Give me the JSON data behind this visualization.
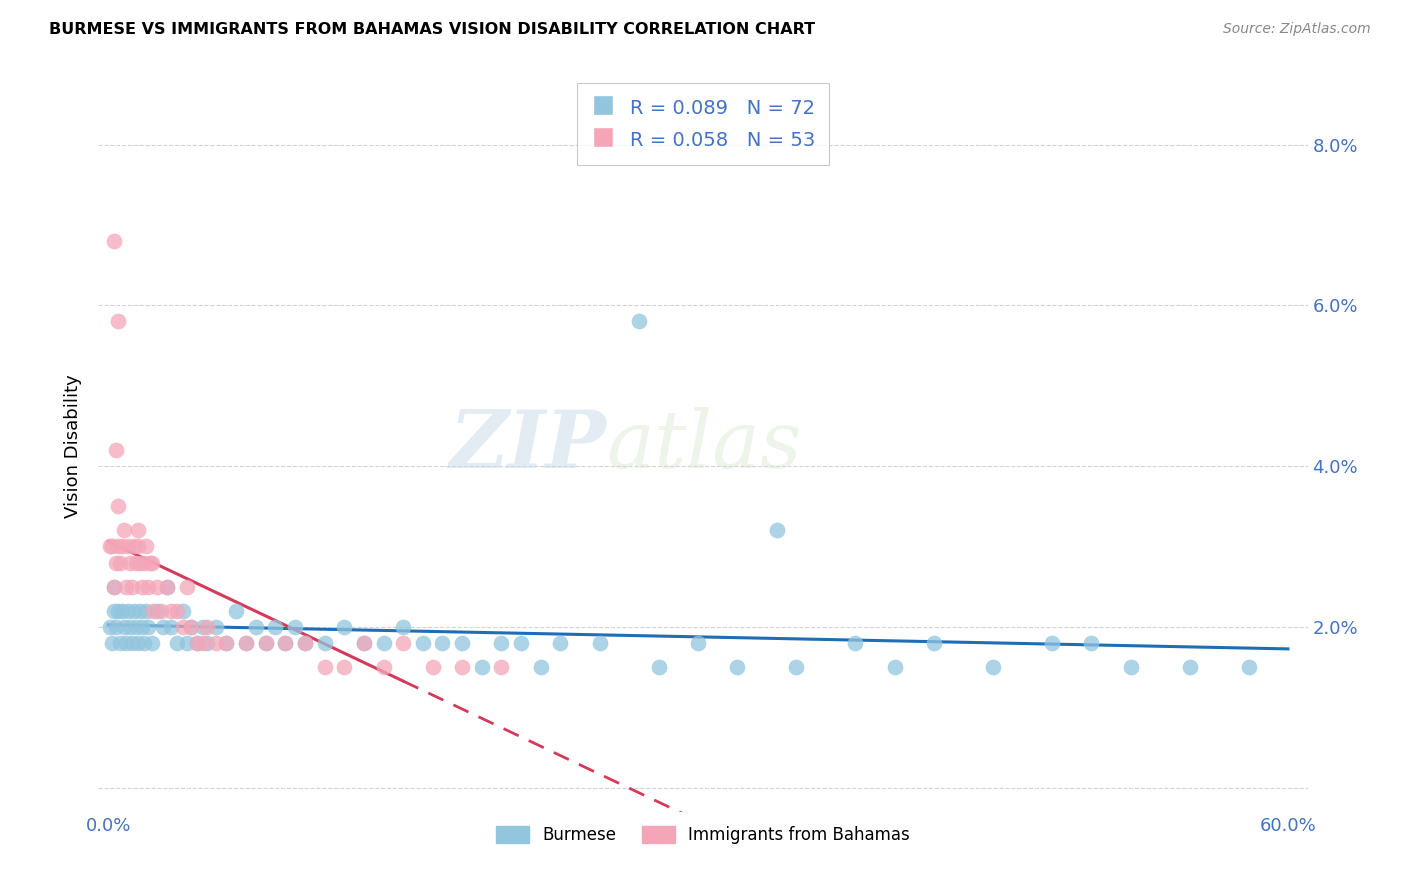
{
  "title": "BURMESE VS IMMIGRANTS FROM BAHAMAS VISION DISABILITY CORRELATION CHART",
  "source": "Source: ZipAtlas.com",
  "ylabel": "Vision Disability",
  "ytick_labels": [
    "",
    "2.0%",
    "4.0%",
    "6.0%",
    "8.0%"
  ],
  "ytick_values": [
    0.0,
    0.02,
    0.04,
    0.06,
    0.08
  ],
  "xlim": [
    -0.005,
    0.61
  ],
  "ylim": [
    -0.003,
    0.088
  ],
  "legend_label_blue": "Burmese",
  "legend_label_pink": "Immigrants from Bahamas",
  "blue_color": "#92c5de",
  "pink_color": "#f4a6b8",
  "trendline_blue_color": "#1f6eb5",
  "trendline_pink_color": "#d63a5a",
  "watermark_text": "ZIPatlas",
  "background_color": "#ffffff",
  "grid_color": "#d0d0d0",
  "blue_scatter_x": [
    0.001,
    0.002,
    0.003,
    0.003,
    0.004,
    0.005,
    0.006,
    0.007,
    0.008,
    0.009,
    0.01,
    0.011,
    0.012,
    0.013,
    0.014,
    0.015,
    0.016,
    0.017,
    0.018,
    0.019,
    0.02,
    0.022,
    0.025,
    0.028,
    0.03,
    0.032,
    0.035,
    0.038,
    0.04,
    0.042,
    0.045,
    0.048,
    0.05,
    0.055,
    0.06,
    0.065,
    0.07,
    0.075,
    0.08,
    0.085,
    0.09,
    0.095,
    0.1,
    0.11,
    0.12,
    0.13,
    0.14,
    0.15,
    0.16,
    0.17,
    0.18,
    0.19,
    0.2,
    0.21,
    0.22,
    0.23,
    0.25,
    0.28,
    0.3,
    0.32,
    0.35,
    0.38,
    0.4,
    0.42,
    0.45,
    0.48,
    0.5,
    0.52,
    0.55,
    0.58,
    0.27,
    0.34
  ],
  "blue_scatter_y": [
    0.02,
    0.018,
    0.022,
    0.025,
    0.02,
    0.022,
    0.018,
    0.022,
    0.02,
    0.018,
    0.022,
    0.02,
    0.018,
    0.022,
    0.02,
    0.018,
    0.022,
    0.02,
    0.018,
    0.022,
    0.02,
    0.018,
    0.022,
    0.02,
    0.025,
    0.02,
    0.018,
    0.022,
    0.018,
    0.02,
    0.018,
    0.02,
    0.018,
    0.02,
    0.018,
    0.022,
    0.018,
    0.02,
    0.018,
    0.02,
    0.018,
    0.02,
    0.018,
    0.018,
    0.02,
    0.018,
    0.018,
    0.02,
    0.018,
    0.018,
    0.018,
    0.015,
    0.018,
    0.018,
    0.015,
    0.018,
    0.018,
    0.015,
    0.018,
    0.015,
    0.015,
    0.018,
    0.015,
    0.018,
    0.015,
    0.018,
    0.018,
    0.015,
    0.015,
    0.015,
    0.058,
    0.032
  ],
  "pink_scatter_x": [
    0.001,
    0.002,
    0.003,
    0.004,
    0.005,
    0.005,
    0.006,
    0.007,
    0.008,
    0.009,
    0.01,
    0.011,
    0.012,
    0.013,
    0.014,
    0.015,
    0.015,
    0.016,
    0.017,
    0.018,
    0.019,
    0.02,
    0.021,
    0.022,
    0.023,
    0.025,
    0.027,
    0.03,
    0.032,
    0.035,
    0.038,
    0.04,
    0.042,
    0.045,
    0.048,
    0.05,
    0.055,
    0.06,
    0.07,
    0.08,
    0.09,
    0.1,
    0.11,
    0.12,
    0.13,
    0.14,
    0.15,
    0.165,
    0.18,
    0.2,
    0.003,
    0.005,
    0.004
  ],
  "pink_scatter_y": [
    0.03,
    0.03,
    0.025,
    0.028,
    0.03,
    0.035,
    0.028,
    0.03,
    0.032,
    0.025,
    0.03,
    0.028,
    0.025,
    0.03,
    0.028,
    0.03,
    0.032,
    0.028,
    0.025,
    0.028,
    0.03,
    0.025,
    0.028,
    0.028,
    0.022,
    0.025,
    0.022,
    0.025,
    0.022,
    0.022,
    0.02,
    0.025,
    0.02,
    0.018,
    0.018,
    0.02,
    0.018,
    0.018,
    0.018,
    0.018,
    0.018,
    0.018,
    0.015,
    0.015,
    0.018,
    0.015,
    0.018,
    0.015,
    0.015,
    0.015,
    0.068,
    0.058,
    0.042
  ]
}
